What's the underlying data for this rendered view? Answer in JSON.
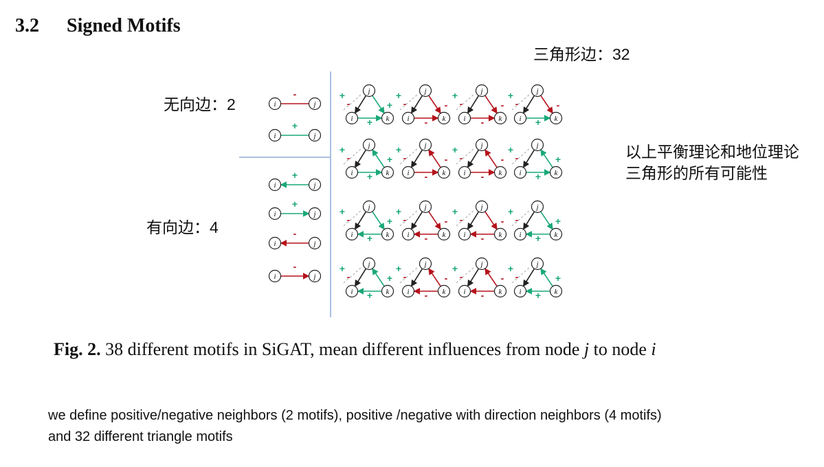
{
  "section": {
    "number": "3.2",
    "title": "Signed Motifs"
  },
  "annotations": {
    "triangle_edges": "三角形边：32",
    "undirected_edges": "无向边：2",
    "directed_edges": "有向边：4",
    "balance_line1": "以上平衡理论和地位理论",
    "balance_line2": "三角形的所有可能性"
  },
  "figure": {
    "node_labels": {
      "i": "i",
      "j": "j",
      "k": "k"
    },
    "sign_labels": {
      "positive": "+",
      "negative": "-"
    },
    "colors": {
      "positive": "#1aa87a",
      "negative": "#b5121b",
      "neutral": "#222222",
      "divider": "#a9bfe0"
    },
    "undirected_motifs": [
      {
        "sign": "negative"
      },
      {
        "sign": "positive"
      }
    ],
    "directed_motifs": [
      {
        "sign": "positive",
        "direction": "j_to_i"
      },
      {
        "sign": "positive",
        "direction": "i_to_j"
      },
      {
        "sign": "negative",
        "direction": "j_to_i"
      },
      {
        "sign": "negative",
        "direction": "i_to_j"
      }
    ],
    "triangle_motifs_count": 32
  },
  "caption": {
    "label": "Fig. 2.",
    "text_before_j": " 38 different motifs in SiGAT, mean different influences from node ",
    "var_j": "j",
    "text_mid": " to node ",
    "var_i": "i"
  },
  "description": {
    "line1": "we define positive/negative neighbors (2 motifs), positive /negative with direction neighbors (4 motifs)",
    "line2": "and 32 different triangle motifs"
  }
}
